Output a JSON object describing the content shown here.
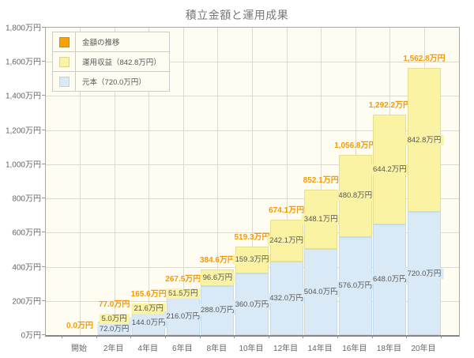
{
  "title": "積立金額と運用成果",
  "legend": {
    "items": [
      {
        "label": "金額の推移",
        "color": "#f7a308",
        "border": "#d78d00"
      },
      {
        "label": "運用収益（842.8万円）",
        "color": "#faf3a3",
        "border": "#e0d586"
      },
      {
        "label": "元本（720.0万円）",
        "color": "#d9eaf6",
        "border": "#b9d4e7"
      }
    ]
  },
  "chart_data": {
    "type": "bar",
    "stacked": true,
    "title": "積立金額と運用成果",
    "categories": [
      "開始",
      "2年目",
      "4年目",
      "6年目",
      "8年目",
      "10年目",
      "12年目",
      "14年目",
      "16年目",
      "18年目",
      "20年目"
    ],
    "series": [
      {
        "name": "元本",
        "color": "#d9eaf6",
        "values": [
          0,
          72.0,
          144.0,
          216.0,
          288.0,
          360.0,
          432.0,
          504.0,
          576.0,
          648.0,
          720.0
        ],
        "value_labels": [
          "",
          "72.0万円",
          "144.0万円",
          "216.0万円",
          "288.0万円",
          "360.0万円",
          "432.0万円",
          "504.0万円",
          "576.0万円",
          "648.0万円",
          "720.0万円"
        ]
      },
      {
        "name": "運用収益",
        "color": "#faf3a3",
        "values": [
          0,
          5.0,
          21.6,
          51.5,
          96.6,
          159.3,
          242.1,
          348.1,
          480.8,
          644.2,
          842.8
        ],
        "value_labels": [
          "",
          "5.0万円",
          "21.6万円",
          "51.5万円",
          "96.6万円",
          "159.3万円",
          "242.1万円",
          "348.1万円",
          "480.8万円",
          "644.2万円",
          "842.8万円"
        ]
      }
    ],
    "totals": [
      0,
      77.0,
      165.6,
      267.5,
      384.6,
      519.3,
      674.1,
      852.1,
      1056.8,
      1292.2,
      1562.8
    ],
    "total_labels": [
      "0.0万円",
      "77.0万円",
      "165.6万円",
      "267.5万円",
      "384.6万円",
      "519.3万円",
      "674.1万円",
      "852.1万円",
      "1,056.8万円",
      "1,292.2万円",
      "1,562.8万円"
    ],
    "ylim": [
      0,
      1800
    ],
    "ystep": 200,
    "ytick_labels": [
      "0万円",
      "200万円",
      "400万円",
      "600万円",
      "800万円",
      "1,000万円",
      "1,200万円",
      "1,400万円",
      "1,600万円",
      "1,800万円"
    ],
    "grid": true,
    "legend_position": "top-left"
  },
  "colors": {
    "page_bg": "#ffffff",
    "plot_bg": "#fffdf2",
    "grid": "#dcd9cf",
    "axis_border": "#a8a8a8",
    "total_label": "#f79a00",
    "segment_label": "#555555",
    "axis_label": "#666666",
    "title": "#777777"
  }
}
